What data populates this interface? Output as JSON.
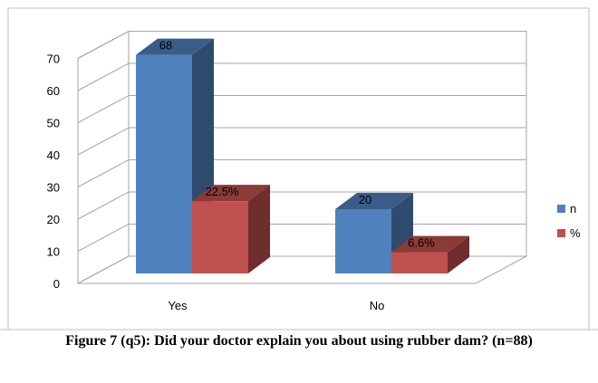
{
  "chart_data": {
    "type": "bar",
    "categories": [
      "Yes",
      "No"
    ],
    "series": [
      {
        "name": "n",
        "values": [
          68,
          20
        ],
        "labels": [
          "68",
          "20"
        ],
        "color": "#4F81BD"
      },
      {
        "name": "%",
        "values": [
          22.5,
          6.6
        ],
        "labels": [
          "22.5%",
          "6.6%"
        ],
        "color": "#C0504D"
      }
    ],
    "ylim": [
      0,
      70
    ],
    "yticks": [
      "0",
      "10",
      "20",
      "30",
      "40",
      "50",
      "60",
      "70"
    ],
    "grid": true,
    "legend_position": "right"
  },
  "caption": "Figure 7 (q5): Did your doctor explain you about using rubber dam?  (n=88)"
}
